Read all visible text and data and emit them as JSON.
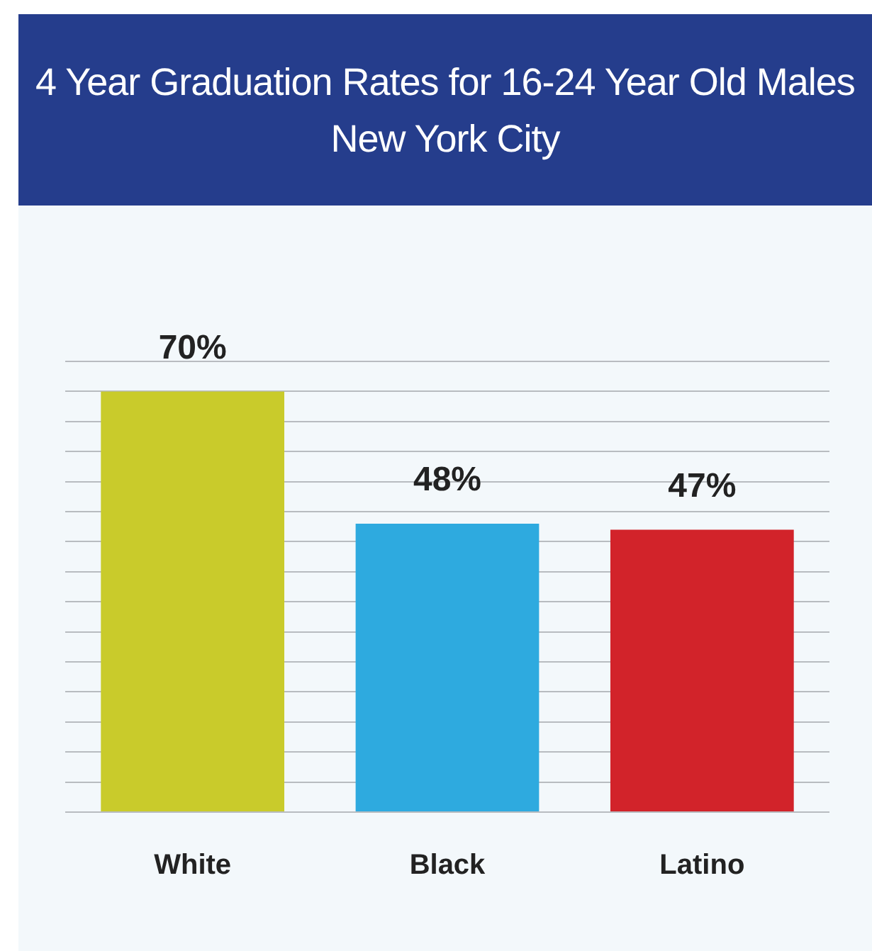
{
  "chart_data": {
    "type": "bar",
    "title": "4 Year Graduation Rates for 16-24 Year Old Males\nNew York City",
    "categories": [
      "White",
      "Black",
      "Latino"
    ],
    "values": [
      70,
      48,
      47
    ],
    "colors": [
      "#c9cb2b",
      "#2eaadf",
      "#d2232a"
    ],
    "value_labels": [
      "70%",
      "48%",
      "47%"
    ],
    "ylim": [
      0,
      75
    ],
    "yticks": [
      {
        "value": 0,
        "label": null
      },
      {
        "value": 5,
        "label": null
      },
      {
        "value": 10,
        "label": null
      },
      {
        "value": 15,
        "label": null
      },
      {
        "value": 20,
        "label": null
      },
      {
        "value": 25,
        "label": null
      },
      {
        "value": 30,
        "label": null
      },
      {
        "value": 35,
        "label": null
      },
      {
        "value": 40,
        "label": null
      },
      {
        "value": 45,
        "label": null
      },
      {
        "value": 50,
        "label": null
      },
      {
        "value": 55,
        "label": null
      },
      {
        "value": 60,
        "label": null
      },
      {
        "value": 65,
        "label": null
      },
      {
        "value": 70,
        "label": null
      },
      {
        "value": 75,
        "label": null
      }
    ],
    "grid": "y",
    "tick_labels": "x",
    "legend": false
  }
}
